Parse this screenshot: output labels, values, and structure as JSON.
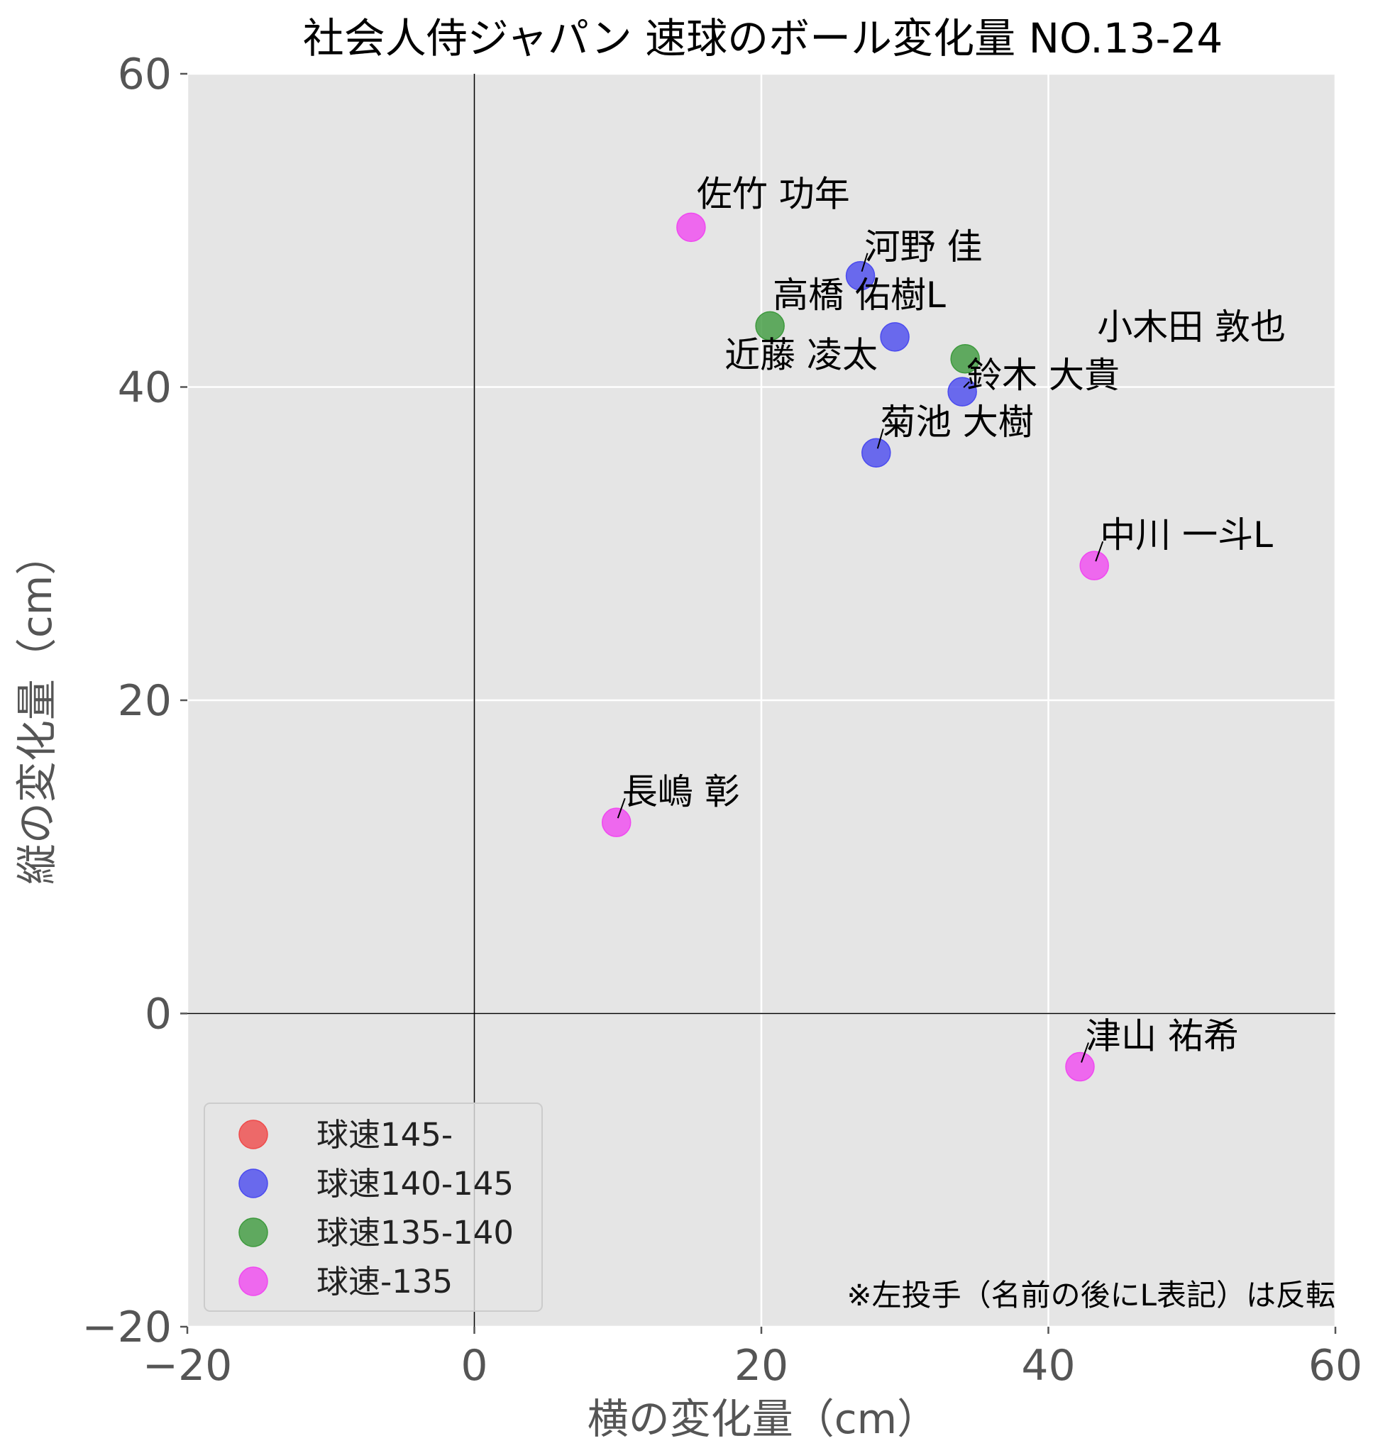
{
  "chart_data": {
    "type": "scatter",
    "title": "社会人侍ジャパン 速球のボール変化量 NO.13-24",
    "xlabel": "横の変化量（cm）",
    "ylabel": "縦の変化量（cm）",
    "xlim": [
      -20,
      60
    ],
    "ylim": [
      -20,
      60
    ],
    "xticks": [
      -20,
      0,
      20,
      40,
      60
    ],
    "yticks": [
      -20,
      0,
      20,
      40,
      60
    ],
    "xtick_labels": [
      "−20",
      "0",
      "20",
      "40",
      "60"
    ],
    "ytick_labels": [
      "−20",
      "0",
      "20",
      "40",
      "60"
    ],
    "grid": true,
    "legend_position": "lower-left",
    "colors": {
      "background": "#e5e5e5",
      "grid": "#ffffff",
      "zero_line": "#000000"
    },
    "series": [
      {
        "name": "球速145-",
        "color": "#ef4a4a",
        "points": []
      },
      {
        "name": "球速140-145",
        "color": "#4a4aef",
        "points": [
          {
            "label": "河野 佳",
            "x": 26.9,
            "y": 47.1
          },
          {
            "label": "高橋 佑樹L",
            "x": 29.3,
            "y": 43.2
          },
          {
            "label": "鈴木 大貴",
            "x": 34.0,
            "y": 39.7
          },
          {
            "label": "菊池 大樹",
            "x": 28.0,
            "y": 35.8
          }
        ]
      },
      {
        "name": "球速135-140",
        "color": "#3d9a3d",
        "points": [
          {
            "label": "近藤 凌太",
            "x": 20.6,
            "y": 43.9
          },
          {
            "label": "小木田 敦也",
            "x": 34.2,
            "y": 41.8
          }
        ]
      },
      {
        "name": "球速-135",
        "color": "#f048f0",
        "points": [
          {
            "label": "佐竹 功年",
            "x": 15.1,
            "y": 50.2
          },
          {
            "label": "中川 一斗L",
            "x": 43.2,
            "y": 28.6
          },
          {
            "label": "長嶋 彰",
            "x": 9.9,
            "y": 12.2
          },
          {
            "label": "津山 祐希",
            "x": 42.2,
            "y": -3.4
          }
        ]
      }
    ],
    "annotation": "※左投手（名前の後にL表記）は反転"
  }
}
